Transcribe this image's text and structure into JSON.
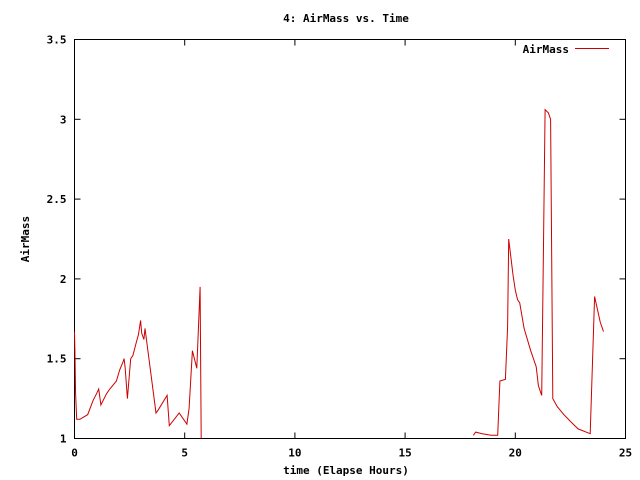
{
  "chart_data": {
    "type": "line",
    "title": "4: AirMass vs. Time",
    "xlabel": "time (Elapse Hours)",
    "ylabel": "AirMass",
    "xlim": [
      0,
      25
    ],
    "ylim": [
      1,
      3.5
    ],
    "xticks": [
      0,
      5,
      10,
      15,
      20,
      25
    ],
    "xtick_labels": [
      "0",
      "5",
      "10",
      "15",
      "20",
      "25"
    ],
    "yticks": [
      1,
      1.5,
      2,
      2.5,
      3,
      3.5
    ],
    "ytick_labels": [
      "1",
      "1.5",
      "2",
      "2.5",
      "3",
      "3.5"
    ],
    "grid": false,
    "legend_position": "top-right",
    "series": [
      {
        "name": "AirMass",
        "color": "#cc0000",
        "segments": [
          {
            "x": [
              0.0,
              0.02,
              0.05,
              0.1,
              0.25,
              0.6,
              0.85,
              1.0,
              1.1,
              1.2,
              1.45,
              1.6,
              1.9,
              2.05,
              2.2,
              2.25,
              2.3,
              2.4,
              2.55,
              2.65,
              2.8,
              2.9,
              3.0,
              3.05,
              3.15,
              3.2,
              3.7,
              3.8,
              4.2,
              4.3,
              4.75,
              5.1,
              5.2,
              5.35,
              5.55,
              5.7,
              5.75
            ],
            "y": [
              1.67,
              1.55,
              1.28,
              1.12,
              1.12,
              1.15,
              1.24,
              1.28,
              1.31,
              1.21,
              1.28,
              1.31,
              1.36,
              1.43,
              1.48,
              1.5,
              1.44,
              1.25,
              1.5,
              1.52,
              1.6,
              1.65,
              1.74,
              1.66,
              1.62,
              1.69,
              1.16,
              1.18,
              1.27,
              1.08,
              1.16,
              1.09,
              1.19,
              1.55,
              1.44,
              1.95,
              1.0
            ]
          },
          {
            "x": [
              18.1,
              18.2,
              18.5,
              18.9,
              19.2,
              19.3,
              19.55,
              19.65,
              19.7,
              19.9,
              20.0,
              20.1,
              20.2,
              20.4,
              20.7,
              20.95,
              21.05,
              21.15,
              21.2,
              21.35,
              21.5,
              21.6,
              21.7,
              21.9,
              22.2,
              22.55,
              22.85,
              23.4,
              23.6,
              23.85,
              24.0
            ],
            "y": [
              1.02,
              1.04,
              1.03,
              1.02,
              1.02,
              1.36,
              1.37,
              1.7,
              2.25,
              2.02,
              1.93,
              1.87,
              1.85,
              1.69,
              1.55,
              1.45,
              1.33,
              1.29,
              1.27,
              3.06,
              3.04,
              3.0,
              1.25,
              1.2,
              1.15,
              1.1,
              1.06,
              1.03,
              1.89,
              1.73,
              1.67
            ]
          }
        ]
      }
    ]
  }
}
